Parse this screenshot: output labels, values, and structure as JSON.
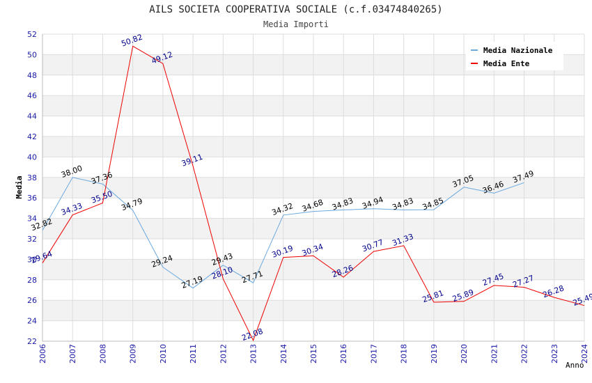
{
  "chart_data": {
    "type": "line",
    "title": "AILS SOCIETA COOPERATIVA SOCIALE (c.f.03474840265)",
    "subtitle": "Media Importi",
    "xlabel": "Anno",
    "ylabel": "Media",
    "ylim": [
      22,
      52
    ],
    "yticks": [
      "22",
      "24",
      "26",
      "28",
      "30",
      "32",
      "34",
      "36",
      "38",
      "40",
      "42",
      "44",
      "46",
      "48",
      "50",
      "52"
    ],
    "categories": [
      "2006",
      "2007",
      "2008",
      "2009",
      "2010",
      "2011",
      "2012",
      "2013",
      "2014",
      "2015",
      "2016",
      "2017",
      "2018",
      "2019",
      "2020",
      "2021",
      "2022",
      "2023",
      "2024"
    ],
    "legend_position": "top-right",
    "series": [
      {
        "name": "Media Nazionale",
        "color": "#6aa8e0",
        "label_color": "#000000",
        "values": [
          32.82,
          38.0,
          37.36,
          34.79,
          29.24,
          27.19,
          29.43,
          27.71,
          34.32,
          34.68,
          34.83,
          34.94,
          34.83,
          34.85,
          37.05,
          36.46,
          37.49,
          null,
          null
        ],
        "labels": [
          "32.82",
          "38.00",
          "37.36",
          "34.79",
          "29.24",
          "27.19",
          "29.43",
          "27.71",
          "34.32",
          "34.68",
          "34.83",
          "34.94",
          "34.83",
          "34.85",
          "37.05",
          "36.46",
          "37.49",
          "",
          ""
        ]
      },
      {
        "name": "Media Ente",
        "color": "#ee0000",
        "label_color": "#00008b",
        "values": [
          29.64,
          34.33,
          35.5,
          50.82,
          49.12,
          39.11,
          28.1,
          22.08,
          30.19,
          30.34,
          28.26,
          30.77,
          31.33,
          25.81,
          25.89,
          27.45,
          27.27,
          26.28,
          25.49
        ],
        "labels": [
          "29.64",
          "34.33",
          "35.50",
          "50.82",
          "49.12",
          "39.11",
          "28.10",
          "22.08",
          "30.19",
          "30.34",
          "28.26",
          "30.77",
          "31.33",
          "25.81",
          "25.89",
          "27.45",
          "27.27",
          "26.28",
          "25.49"
        ]
      }
    ]
  }
}
